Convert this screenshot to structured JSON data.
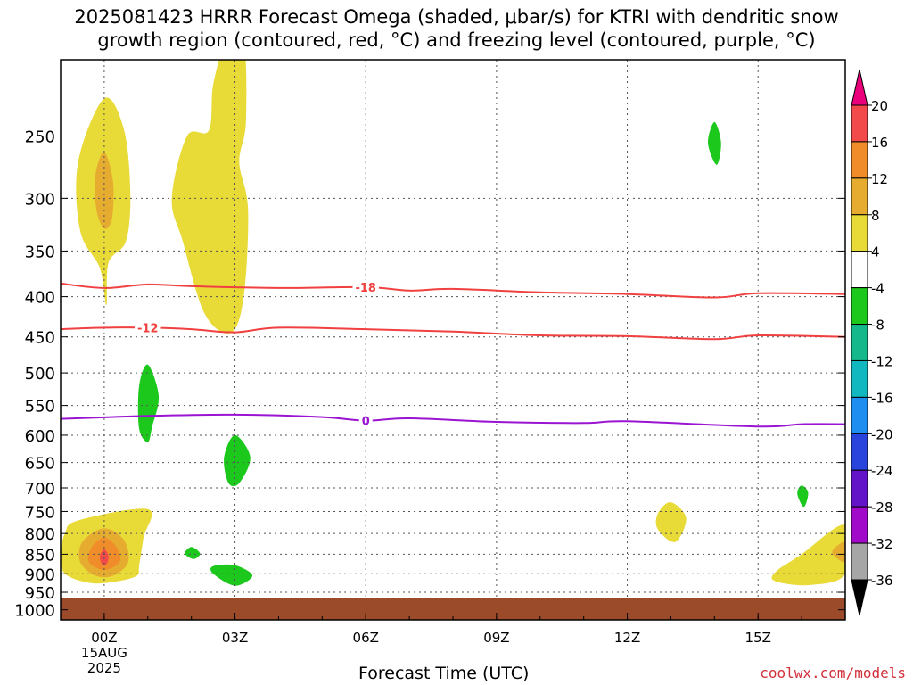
{
  "title_line1": "2025081423 HRRR Forecast Omega (shaded, μbar/s) for KTRI with dendritic snow",
  "title_line2": "growth region (contoured, red, °C) and freezing level (contoured, purple, °C)",
  "credit": "coolwx.com/models",
  "chart_data": {
    "type": "heatmap",
    "title": "2025081423 HRRR Forecast Omega (shaded, μbar/s) for KTRI with dendritic snow growth region (contoured, red, °C) and freezing level (contoured, purple, °C)",
    "xlabel": "Forecast Time (UTC)",
    "ylabel": "",
    "x_unit": "forecast hour from 00Z 15AUG2025",
    "xlim": [
      -1,
      17
    ],
    "ylim_hPa": [
      1030,
      200
    ],
    "y_scale": "log-pressure",
    "grid": true,
    "x_ticks": [
      {
        "hour": 0,
        "label": "00Z",
        "sub1": "15AUG",
        "sub2": "2025"
      },
      {
        "hour": 3,
        "label": "03Z"
      },
      {
        "hour": 6,
        "label": "06Z"
      },
      {
        "hour": 9,
        "label": "09Z"
      },
      {
        "hour": 12,
        "label": "12Z"
      },
      {
        "hour": 15,
        "label": "15Z"
      }
    ],
    "y_ticks": [
      250,
      300,
      350,
      400,
      450,
      500,
      550,
      600,
      650,
      700,
      750,
      800,
      850,
      900,
      950,
      1000
    ],
    "surface_pressure_hPa": 965,
    "colorbar": {
      "levels": [
        "20",
        "16",
        "12",
        "8",
        "4",
        "-4",
        "-8",
        "-12",
        "-16",
        "-20",
        "-24",
        "-28",
        "-32",
        "-36"
      ],
      "colors": [
        "#e9007a",
        "#f24a4a",
        "#f08c2a",
        "#e5ac30",
        "#e8da37",
        "#ffffff",
        "#1dc81d",
        "#14b88a",
        "#11b8c0",
        "#1e8ef0",
        "#2844dc",
        "#6414c8",
        "#a00ac8",
        "#a6a6a6",
        "#000000"
      ]
    },
    "contours": [
      {
        "label": "-18",
        "color": "#f04040",
        "points": [
          [
            -1,
            385
          ],
          [
            0,
            390
          ],
          [
            1,
            386
          ],
          [
            2,
            388
          ],
          [
            4,
            390
          ],
          [
            6,
            389
          ],
          [
            7,
            393
          ],
          [
            8,
            391
          ],
          [
            10,
            395
          ],
          [
            12,
            397
          ],
          [
            14,
            401
          ],
          [
            15,
            396
          ],
          [
            17,
            397
          ]
        ]
      },
      {
        "label": "-12",
        "color": "#f04040",
        "points": [
          [
            -1,
            440
          ],
          [
            0,
            438
          ],
          [
            1,
            438
          ],
          [
            2,
            440
          ],
          [
            3,
            444
          ],
          [
            4,
            438
          ],
          [
            6,
            440
          ],
          [
            8,
            443
          ],
          [
            10,
            448
          ],
          [
            12,
            449
          ],
          [
            14,
            453
          ],
          [
            15,
            448
          ],
          [
            17,
            450
          ]
        ]
      },
      {
        "label": "0",
        "color": "#9a14d2",
        "points": [
          [
            -1,
            572
          ],
          [
            1,
            567
          ],
          [
            3,
            565
          ],
          [
            5,
            569
          ],
          [
            6,
            575
          ],
          [
            7,
            571
          ],
          [
            9,
            577
          ],
          [
            11,
            579
          ],
          [
            12,
            576
          ],
          [
            15,
            585
          ],
          [
            16,
            581
          ],
          [
            17,
            581
          ]
        ]
      }
    ],
    "omega_regions": [
      {
        "value": 4,
        "color": "#e8da37",
        "points": [
          [
            0,
            224
          ],
          [
            0.45,
            245
          ],
          [
            0.6,
            295
          ],
          [
            0.5,
            340
          ],
          [
            0.1,
            362
          ],
          [
            0.05,
            410
          ],
          [
            -0.1,
            368
          ],
          [
            -0.55,
            330
          ],
          [
            -0.6,
            270
          ]
        ]
      },
      {
        "value": 8,
        "color": "#e5ac30",
        "points": [
          [
            0,
            262
          ],
          [
            0.2,
            285
          ],
          [
            0.18,
            318
          ],
          [
            0,
            328
          ],
          [
            -0.18,
            310
          ],
          [
            -0.2,
            280
          ]
        ]
      },
      {
        "value": 4,
        "color": "#e8da37",
        "points": [
          [
            2.8,
            190
          ],
          [
            3.2,
            190
          ],
          [
            3.25,
            240
          ],
          [
            3.1,
            270
          ],
          [
            3.3,
            310
          ],
          [
            3.2,
            400
          ],
          [
            2.9,
            445
          ],
          [
            2.3,
            420
          ],
          [
            1.8,
            340
          ],
          [
            1.55,
            300
          ],
          [
            1.9,
            250
          ],
          [
            2.4,
            246
          ],
          [
            2.5,
            215
          ]
        ]
      },
      {
        "value": 4,
        "color": "#e8da37",
        "points": [
          [
            -0.6,
            770
          ],
          [
            1,
            745
          ],
          [
            0.9,
            810
          ],
          [
            0.8,
            880
          ],
          [
            0.75,
            905
          ],
          [
            0.3,
            920
          ],
          [
            -0.3,
            925
          ],
          [
            -0.9,
            900
          ],
          [
            -1,
            850
          ],
          [
            -0.9,
            800
          ]
        ]
      },
      {
        "value": 8,
        "color": "#e5ac30",
        "points": [
          [
            0,
            788
          ],
          [
            0.45,
            815
          ],
          [
            0.55,
            870
          ],
          [
            0.2,
            905
          ],
          [
            -0.2,
            905
          ],
          [
            -0.55,
            870
          ],
          [
            -0.5,
            820
          ]
        ]
      },
      {
        "value": 12,
        "color": "#f08c2a",
        "points": [
          [
            0,
            810
          ],
          [
            0.3,
            835
          ],
          [
            0.35,
            870
          ],
          [
            0,
            890
          ],
          [
            -0.35,
            870
          ],
          [
            -0.3,
            835
          ]
        ]
      },
      {
        "value": 16,
        "color": "#f24a4a",
        "points": [
          [
            0,
            838
          ],
          [
            0.1,
            855
          ],
          [
            0.05,
            875
          ],
          [
            -0.05,
            875
          ],
          [
            -0.1,
            855
          ]
        ]
      },
      {
        "value": -4,
        "color": "#1dc81d",
        "points": [
          [
            1,
            488
          ],
          [
            1.25,
            535
          ],
          [
            1.1,
            585
          ],
          [
            1,
            612
          ],
          [
            0.8,
            588
          ],
          [
            0.8,
            520
          ]
        ]
      },
      {
        "value": -4,
        "color": "#1dc81d",
        "points": [
          [
            3,
            600
          ],
          [
            3.35,
            640
          ],
          [
            3.1,
            690
          ],
          [
            2.85,
            690
          ],
          [
            2.75,
            640
          ]
        ]
      },
      {
        "value": -4,
        "color": "#1dc81d",
        "points": [
          [
            2,
            832
          ],
          [
            2.2,
            848
          ],
          [
            2.05,
            862
          ],
          [
            1.85,
            848
          ]
        ]
      },
      {
        "value": -4,
        "color": "#1dc81d",
        "points": [
          [
            2.5,
            880
          ],
          [
            3,
            878
          ],
          [
            3.4,
            905
          ],
          [
            3,
            932
          ],
          [
            2.5,
            900
          ]
        ]
      },
      {
        "value": 4,
        "color": "#e8da37",
        "points": [
          [
            13,
            730
          ],
          [
            13.35,
            765
          ],
          [
            13.1,
            820
          ],
          [
            12.7,
            790
          ],
          [
            12.7,
            755
          ]
        ]
      },
      {
        "value": -4,
        "color": "#1dc81d",
        "points": [
          [
            14,
            240
          ],
          [
            14.15,
            255
          ],
          [
            14.05,
            272
          ],
          [
            13.85,
            255
          ]
        ]
      },
      {
        "value": -4,
        "color": "#1dc81d",
        "points": [
          [
            16,
            695
          ],
          [
            16.15,
            710
          ],
          [
            16.05,
            740
          ],
          [
            15.9,
            712
          ]
        ]
      },
      {
        "value": 4,
        "color": "#e8da37",
        "points": [
          [
            17,
            780
          ],
          [
            17,
            900
          ],
          [
            16.2,
            930
          ],
          [
            15.4,
            920
          ],
          [
            15.4,
            895
          ],
          [
            16,
            850
          ]
        ]
      },
      {
        "value": 8,
        "color": "#e5ac30",
        "points": [
          [
            17,
            820
          ],
          [
            17,
            870
          ],
          [
            16.7,
            845
          ]
        ]
      }
    ]
  }
}
